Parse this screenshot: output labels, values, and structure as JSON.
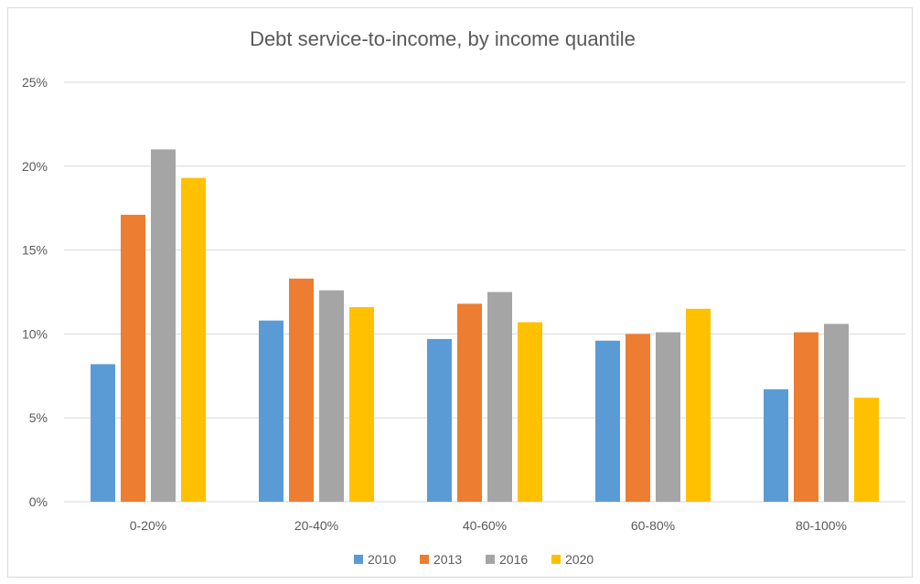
{
  "chart_data": {
    "type": "bar",
    "title": "Debt service-to-income, by income quantile",
    "xlabel": "",
    "ylabel": "",
    "categories": [
      "0-20%",
      "20-40%",
      "40-60%",
      "60-80%",
      "80-100%"
    ],
    "series": [
      {
        "name": "2010",
        "values": [
          8.2,
          10.8,
          9.7,
          9.6,
          6.7
        ]
      },
      {
        "name": "2013",
        "values": [
          17.1,
          13.3,
          11.8,
          10.0,
          10.1
        ]
      },
      {
        "name": "2016",
        "values": [
          21.0,
          12.6,
          12.5,
          10.1,
          10.6
        ]
      },
      {
        "name": "2020",
        "values": [
          19.3,
          11.6,
          10.7,
          11.5,
          6.2
        ]
      }
    ],
    "ylim": [
      0,
      25
    ],
    "yticks": [
      0,
      5,
      10,
      15,
      20,
      25
    ],
    "ytick_labels": [
      "0%",
      "5%",
      "10%",
      "15%",
      "20%",
      "25%"
    ],
    "grid": true,
    "legend_position": "bottom-center",
    "colors": {
      "2010": "#5b9bd5",
      "2013": "#ed7d31",
      "2016": "#a5a5a5",
      "2020": "#ffc000",
      "grid": "#d9d9d9",
      "text": "#595959"
    }
  }
}
